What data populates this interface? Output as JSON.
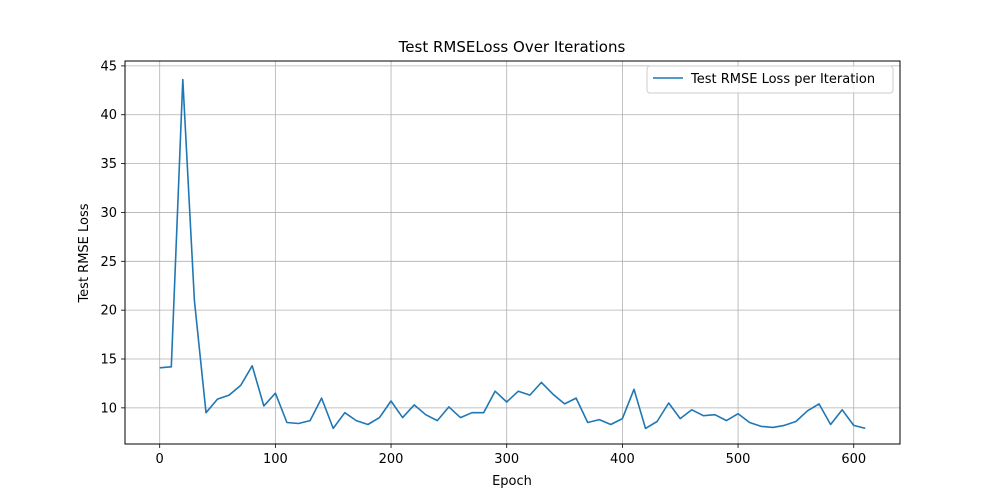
{
  "chart_data": {
    "type": "line",
    "title": "Test RMSELoss Over Iterations",
    "xlabel": "Epoch",
    "ylabel": "Test RMSE Loss",
    "xlim": [
      -30,
      640
    ],
    "ylim": [
      6.3,
      45.5
    ],
    "xticks": [
      0,
      100,
      200,
      300,
      400,
      500,
      600
    ],
    "yticks": [
      10,
      15,
      20,
      25,
      30,
      35,
      40,
      45
    ],
    "grid": true,
    "legend_position": "top-right",
    "series": [
      {
        "name": "Test RMSE Loss per Iteration",
        "color": "#1f77b4",
        "x": [
          0,
          10,
          20,
          30,
          40,
          50,
          60,
          70,
          80,
          90,
          100,
          110,
          120,
          130,
          140,
          150,
          160,
          170,
          180,
          190,
          200,
          210,
          220,
          230,
          240,
          250,
          260,
          270,
          280,
          290,
          300,
          310,
          320,
          330,
          340,
          350,
          360,
          370,
          380,
          390,
          400,
          410,
          420,
          430,
          440,
          450,
          460,
          470,
          480,
          490,
          500,
          510,
          520,
          530,
          540,
          550,
          560,
          570,
          580,
          590,
          600,
          610
        ],
        "y": [
          14.1,
          14.2,
          43.6,
          21.0,
          9.5,
          10.9,
          11.3,
          12.3,
          14.3,
          10.2,
          11.5,
          8.5,
          8.4,
          8.7,
          11.0,
          7.9,
          9.5,
          8.7,
          8.3,
          9.0,
          10.7,
          9.0,
          10.3,
          9.3,
          8.7,
          10.1,
          9.0,
          9.5,
          9.5,
          11.7,
          10.6,
          11.7,
          11.3,
          12.6,
          11.4,
          10.4,
          11.0,
          8.5,
          8.8,
          8.3,
          8.9,
          11.9,
          7.9,
          8.6,
          10.5,
          8.9,
          9.8,
          9.2,
          9.3,
          8.7,
          9.4,
          8.5,
          8.1,
          8.0,
          8.2,
          8.6,
          9.7,
          10.4,
          8.3,
          9.8,
          8.2,
          7.9
        ]
      }
    ]
  }
}
